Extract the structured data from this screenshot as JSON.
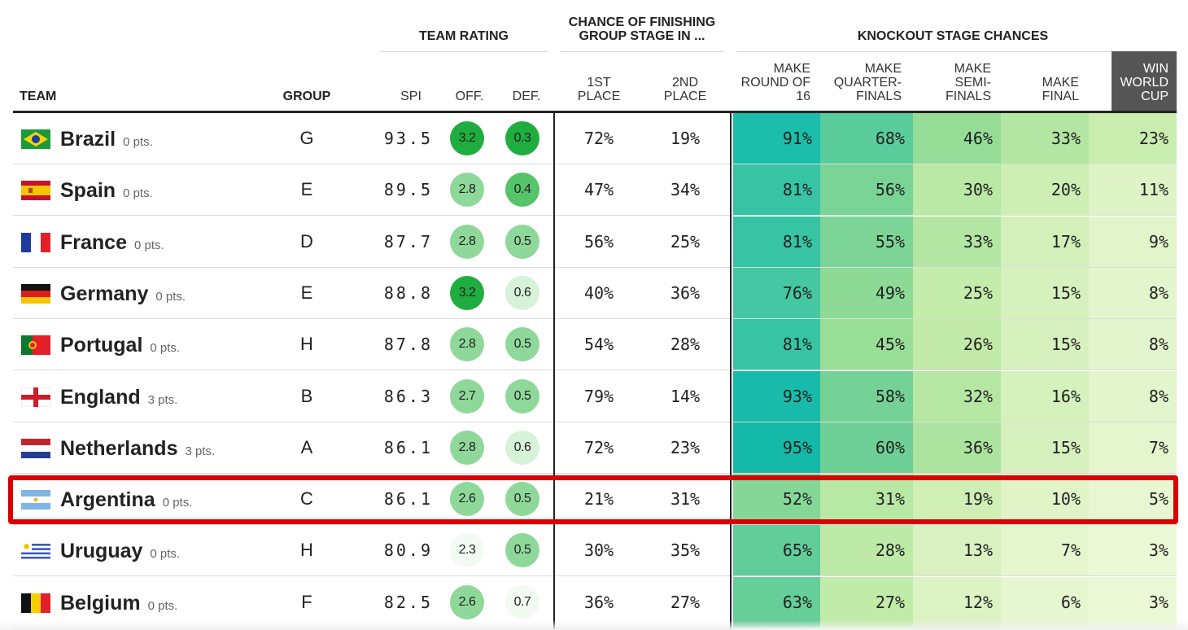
{
  "header_groups": {
    "team_rating": "TEAM RATING",
    "group_stage": "CHANCE OF FINISHING\nGROUP STAGE IN ...",
    "knockout": "KNOCKOUT STAGE CHANCES"
  },
  "columns": {
    "team": "TEAM",
    "group": "GROUP",
    "spi": "SPI",
    "off": "OFF.",
    "def": "DEF.",
    "first": "1ST\nPLACE",
    "second": "2ND\nPLACE",
    "r16": "MAKE\nROUND OF\n16",
    "qf": "MAKE\nQUARTER-\nFINALS",
    "sf": "MAKE\nSEMI-\nFINALS",
    "final": "MAKE\nFINAL",
    "win": "WIN\nWORLD\nCUP"
  },
  "colors": {
    "highlight_border": "#d80000",
    "header_dark": "#555555",
    "off_def_scale": [
      "#f2fbf1",
      "#d6f2d8",
      "#8ed89a",
      "#56c469",
      "#1fad3f"
    ]
  },
  "rows": [
    {
      "flag": "brazil-flag",
      "team": "Brazil",
      "pts": "0 pts.",
      "group": "G",
      "spi": "93.5",
      "off": "3.2",
      "def": "0.3",
      "first": "72%",
      "second": "19%",
      "r16": "91%",
      "qf": "68%",
      "sf": "46%",
      "final": "33%",
      "win": "23%"
    },
    {
      "flag": "spain-flag",
      "team": "Spain",
      "pts": "0 pts.",
      "group": "E",
      "spi": "89.5",
      "off": "2.8",
      "def": "0.4",
      "first": "47%",
      "second": "34%",
      "r16": "81%",
      "qf": "56%",
      "sf": "30%",
      "final": "20%",
      "win": "11%"
    },
    {
      "flag": "france-flag",
      "team": "France",
      "pts": "0 pts.",
      "group": "D",
      "spi": "87.7",
      "off": "2.8",
      "def": "0.5",
      "first": "56%",
      "second": "25%",
      "r16": "81%",
      "qf": "55%",
      "sf": "33%",
      "final": "17%",
      "win": "9%"
    },
    {
      "flag": "germany-flag",
      "team": "Germany",
      "pts": "0 pts.",
      "group": "E",
      "spi": "88.8",
      "off": "3.2",
      "def": "0.6",
      "first": "40%",
      "second": "36%",
      "r16": "76%",
      "qf": "49%",
      "sf": "25%",
      "final": "15%",
      "win": "8%"
    },
    {
      "flag": "portugal-flag",
      "team": "Portugal",
      "pts": "0 pts.",
      "group": "H",
      "spi": "87.8",
      "off": "2.8",
      "def": "0.5",
      "first": "54%",
      "second": "28%",
      "r16": "81%",
      "qf": "45%",
      "sf": "26%",
      "final": "15%",
      "win": "8%"
    },
    {
      "flag": "england-flag",
      "team": "England",
      "pts": "3 pts.",
      "group": "B",
      "spi": "86.3",
      "off": "2.7",
      "def": "0.5",
      "first": "79%",
      "second": "14%",
      "r16": "93%",
      "qf": "58%",
      "sf": "32%",
      "final": "16%",
      "win": "8%"
    },
    {
      "flag": "netherlands-flag",
      "team": "Netherlands",
      "pts": "3 pts.",
      "group": "A",
      "spi": "86.1",
      "off": "2.8",
      "def": "0.6",
      "first": "72%",
      "second": "23%",
      "r16": "95%",
      "qf": "60%",
      "sf": "36%",
      "final": "15%",
      "win": "7%"
    },
    {
      "flag": "argentina-flag",
      "team": "Argentina",
      "pts": "0 pts.",
      "group": "C",
      "spi": "86.1",
      "off": "2.6",
      "def": "0.5",
      "first": "21%",
      "second": "31%",
      "r16": "52%",
      "qf": "31%",
      "sf": "19%",
      "final": "10%",
      "win": "5%",
      "highlighted": true
    },
    {
      "flag": "uruguay-flag",
      "team": "Uruguay",
      "pts": "0 pts.",
      "group": "H",
      "spi": "80.9",
      "off": "2.3",
      "def": "0.5",
      "first": "30%",
      "second": "35%",
      "r16": "65%",
      "qf": "28%",
      "sf": "13%",
      "final": "7%",
      "win": "3%"
    },
    {
      "flag": "belgium-flag",
      "team": "Belgium",
      "pts": "0 pts.",
      "group": "F",
      "spi": "82.5",
      "off": "2.6",
      "def": "0.7",
      "first": "36%",
      "second": "27%",
      "r16": "63%",
      "qf": "27%",
      "sf": "12%",
      "final": "6%",
      "win": "3%"
    }
  ]
}
